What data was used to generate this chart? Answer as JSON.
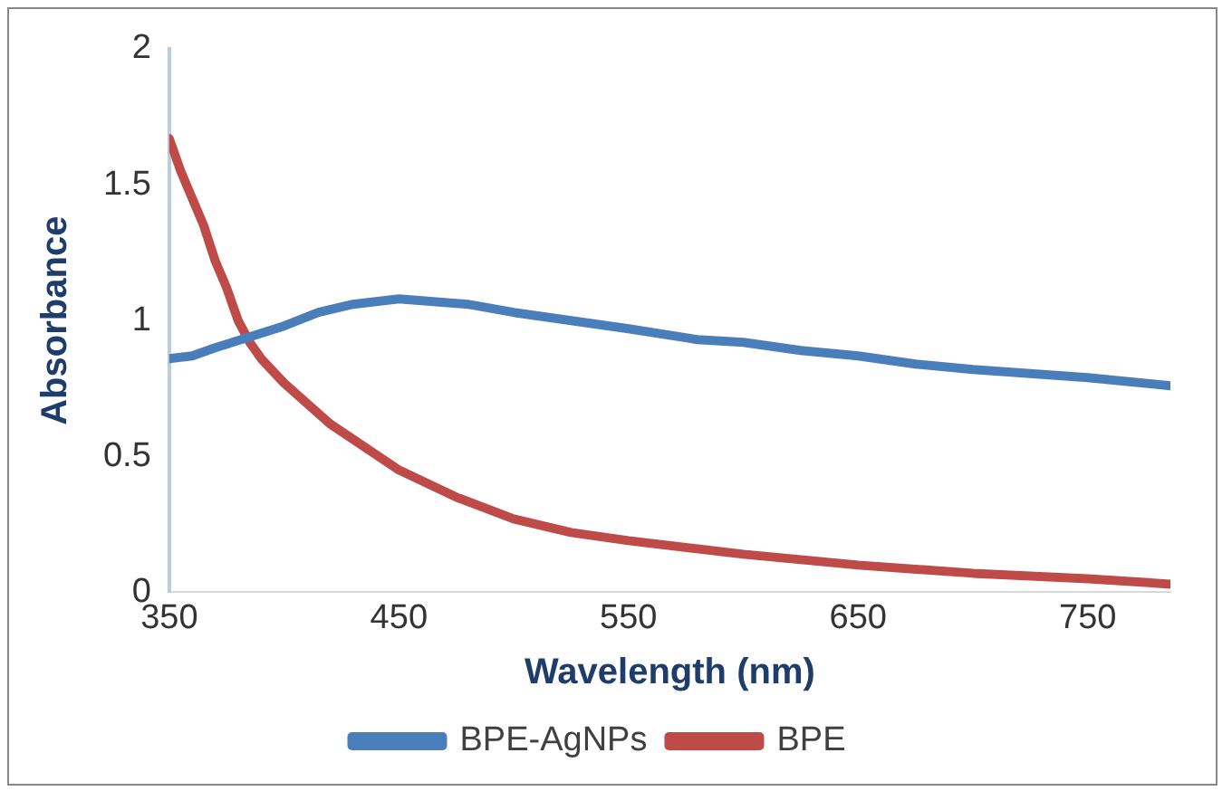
{
  "chart_data": {
    "type": "line",
    "xlabel": "Wavelength (nm)",
    "ylabel": "Absorbance",
    "xlim": [
      350,
      786
    ],
    "xticks": [
      350,
      450,
      550,
      650,
      750
    ],
    "ylim": [
      0,
      2
    ],
    "yticks": [
      0,
      0.5,
      1,
      1.5,
      2
    ],
    "grid": false,
    "legend": "bottom",
    "marker": "none",
    "line_style": "solid",
    "series": [
      {
        "name": "BPE-AgNPs",
        "color": "#4a7ebb",
        "x": [
          350,
          360,
          370,
          385,
          400,
          415,
          430,
          450,
          465,
          480,
          500,
          525,
          550,
          580,
          600,
          625,
          650,
          675,
          700,
          750,
          786
        ],
        "values": [
          0.86,
          0.87,
          0.9,
          0.94,
          0.98,
          1.03,
          1.06,
          1.08,
          1.07,
          1.06,
          1.03,
          1.0,
          0.97,
          0.93,
          0.92,
          0.89,
          0.87,
          0.84,
          0.82,
          0.79,
          0.76
        ]
      },
      {
        "name": "BPE",
        "color": "#be4b48",
        "x": [
          350,
          355,
          360,
          365,
          370,
          375,
          380,
          385,
          390,
          400,
          420,
          450,
          475,
          500,
          525,
          550,
          600,
          650,
          700,
          750,
          786
        ],
        "values": [
          1.67,
          1.55,
          1.45,
          1.35,
          1.22,
          1.12,
          1.0,
          0.92,
          0.86,
          0.77,
          0.62,
          0.45,
          0.35,
          0.27,
          0.22,
          0.19,
          0.14,
          0.1,
          0.07,
          0.05,
          0.03
        ]
      }
    ]
  }
}
